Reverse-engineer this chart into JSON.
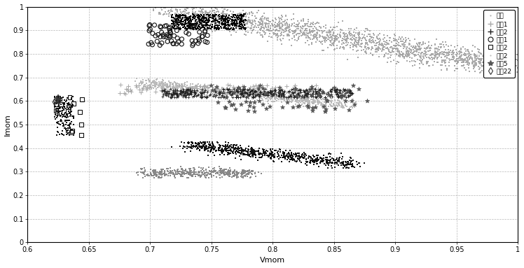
{
  "xlabel": "Vmom",
  "ylabel": "Imom",
  "xlim": [
    0.6,
    1.0
  ],
  "ylim": [
    0,
    1
  ],
  "xticks": [
    0.6,
    0.65,
    0.7,
    0.75,
    0.8,
    0.85,
    0.9,
    0.95,
    1.0
  ],
  "yticks": [
    0,
    0.1,
    0.2,
    0.3,
    0.4,
    0.5,
    0.6,
    0.7,
    0.8,
    0.9,
    1.0
  ],
  "legend_labels": [
    "正常",
    "开路1",
    "开路2",
    "短路1",
    "短路2",
    "阴影2",
    "阴影5",
    "阴影22"
  ],
  "normal_color": "#aaaaaa",
  "oc1_color": "#aaaaaa",
  "oc2_color": "#222222",
  "sc1_color": "#111111",
  "sc2_color": "#111111",
  "sh2_color": "#bbbbbb",
  "sh5_color": "#555555",
  "sh22_color": "#333333",
  "dk_color": "#000000",
  "low1_color": "#888888",
  "low2_color": "#111111",
  "grid_linestyle": "--",
  "grid_color": "#888888",
  "bg_color": "#ffffff"
}
